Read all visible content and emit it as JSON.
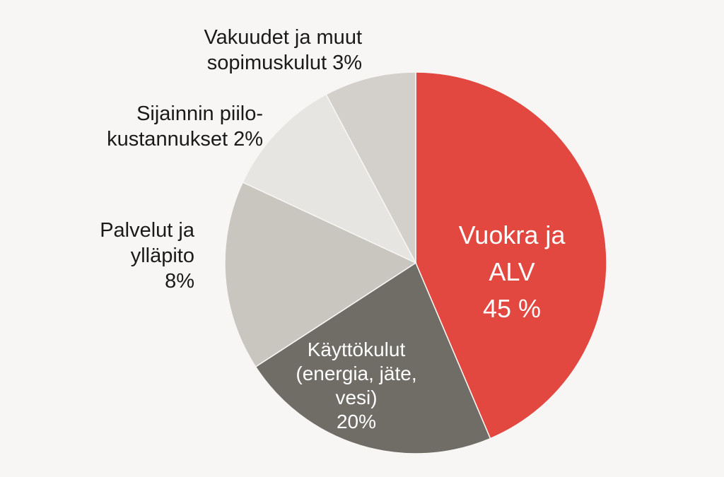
{
  "chart_data": {
    "type": "pie",
    "start_angle_deg": 0,
    "direction": "clockwise",
    "slices": [
      {
        "lines": [
          "Vuokra ja",
          "ALV"
        ],
        "pct": "45 %",
        "value": 45,
        "color": "#e24840",
        "text_color": "#ffffff"
      },
      {
        "lines": [
          "Käyttökulut",
          "(energia, jäte,",
          "vesi)"
        ],
        "pct": "20%",
        "value": 20,
        "color": "#6f6d66",
        "text_color": "#ffffff"
      },
      {
        "lines": [
          "Palvelut ja",
          "ylläpito"
        ],
        "pct": "8%",
        "value": 8,
        "color": "#c9c5bf",
        "text_color": "#1a1a1a"
      },
      {
        "lines": [
          "Sijainnin piilo-",
          "kustannukset"
        ],
        "pct": "2%",
        "value": 2,
        "color": "#e7e5e2",
        "text_color": "#1a1a1a"
      },
      {
        "lines": [
          "Vakuudet ja muut",
          "sopimuskulut"
        ],
        "pct": "3%",
        "value": 3,
        "color": "#d3d0cc",
        "text_color": "#1a1a1a"
      }
    ]
  }
}
